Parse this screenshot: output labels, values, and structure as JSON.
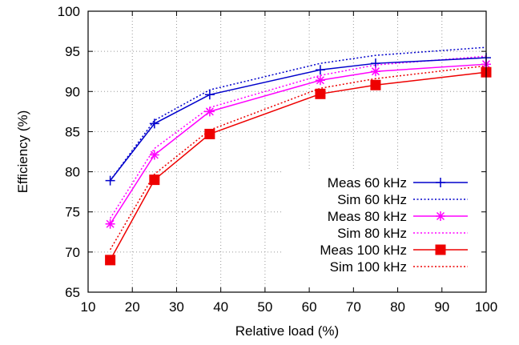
{
  "chart_data": {
    "type": "line",
    "title": "",
    "xlabel": "Relative load (%)",
    "ylabel": "Efficiency (%)",
    "xlim": [
      10,
      100
    ],
    "ylim": [
      65,
      100
    ],
    "xticks": [
      10,
      20,
      30,
      40,
      50,
      60,
      70,
      80,
      90,
      100
    ],
    "yticks": [
      65,
      70,
      75,
      80,
      85,
      90,
      95,
      100
    ],
    "grid": "dotted",
    "legend_position": "bottom-right",
    "series": [
      {
        "name": "Meas 60 kHz",
        "color": "#0000cc",
        "dash": "solid",
        "marker": "plus",
        "x": [
          15,
          25,
          37.5,
          62.5,
          75,
          100
        ],
        "y": [
          78.9,
          86.0,
          89.6,
          92.7,
          93.5,
          94.2
        ]
      },
      {
        "name": "Sim 60 kHz",
        "color": "#0000cc",
        "dash": "dotted",
        "marker": "none",
        "x": [
          15,
          25,
          37.5,
          62.5,
          75,
          100
        ],
        "y": [
          78.9,
          86.4,
          90.2,
          93.5,
          94.5,
          95.5
        ]
      },
      {
        "name": "Meas 80 kHz",
        "color": "#ff00ff",
        "dash": "solid",
        "marker": "asterisk",
        "x": [
          15,
          25,
          37.5,
          62.5,
          75,
          100
        ],
        "y": [
          73.5,
          82.1,
          87.5,
          91.4,
          92.5,
          93.4
        ]
      },
      {
        "name": "Sim 80 kHz",
        "color": "#ff00ff",
        "dash": "dotted",
        "marker": "none",
        "x": [
          15,
          25,
          37.5,
          62.5,
          75,
          100
        ],
        "y": [
          74.2,
          82.9,
          88.0,
          92.0,
          93.3,
          94.4
        ]
      },
      {
        "name": "Meas 100 kHz",
        "color": "#ee0000",
        "dash": "solid",
        "marker": "square",
        "x": [
          15,
          25,
          37.5,
          62.5,
          75,
          100
        ],
        "y": [
          69.0,
          79.0,
          84.7,
          89.7,
          90.8,
          92.4
        ]
      },
      {
        "name": "Sim 100 kHz",
        "color": "#ee0000",
        "dash": "dotted",
        "marker": "none",
        "x": [
          15,
          25,
          37.5,
          62.5,
          75,
          100
        ],
        "y": [
          70.3,
          79.7,
          85.2,
          90.4,
          91.6,
          93.2
        ]
      }
    ]
  }
}
